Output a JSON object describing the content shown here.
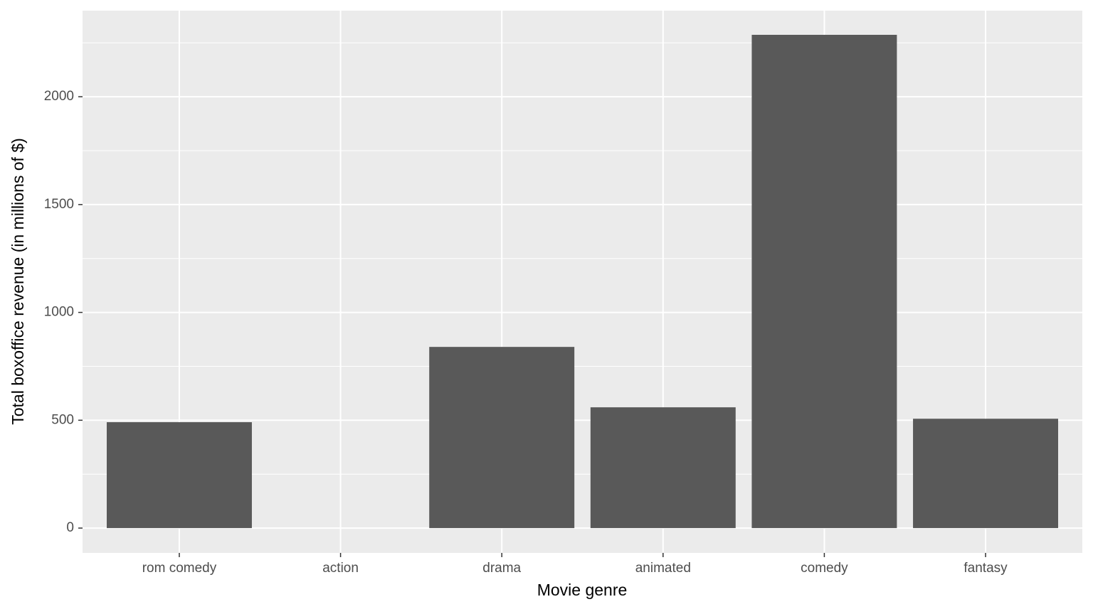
{
  "chart_data": {
    "type": "bar",
    "x_label": "Movie genre",
    "y_label": "Total boxoffice revenue (in millions of $)",
    "categories": [
      "rom comedy",
      "action",
      "drama",
      "animated",
      "comedy",
      "fantasy"
    ],
    "values": [
      491,
      0,
      840,
      560,
      2287,
      507
    ],
    "color": "#595959",
    "ylim": [
      -115,
      2399
    ],
    "yticks": [
      0,
      500,
      1000,
      1500,
      2000
    ],
    "grid": true
  }
}
